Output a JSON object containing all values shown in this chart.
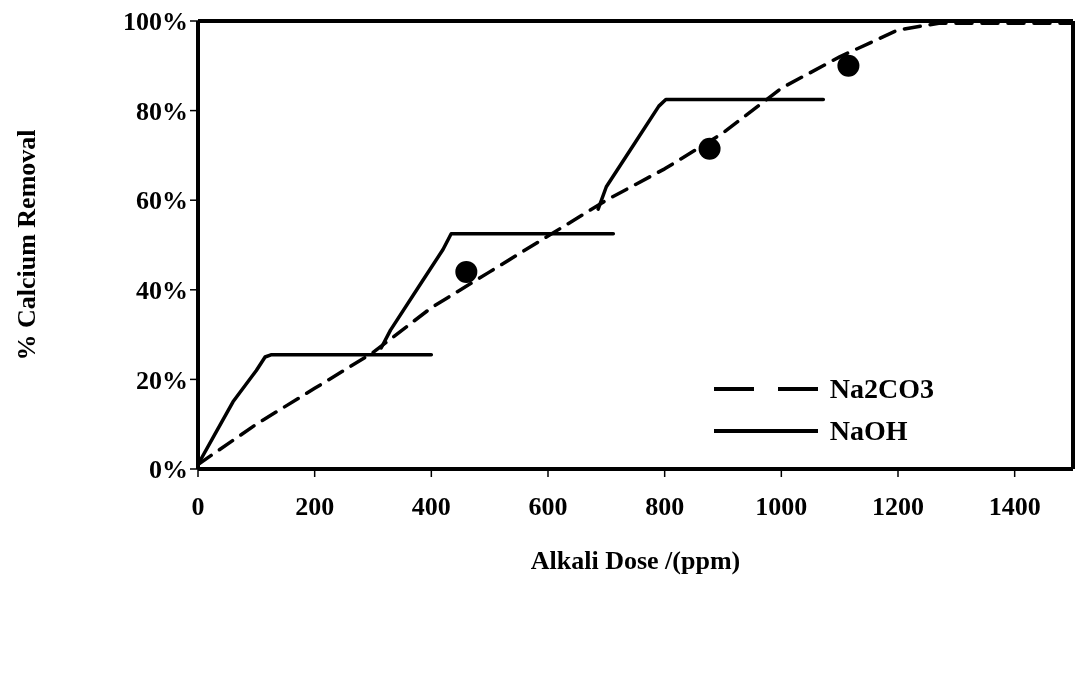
{
  "chart_data": {
    "type": "line",
    "xlabel": "Alkali Dose /(ppm)",
    "ylabel": "% Calcium Removal",
    "xlim": [
      0,
      1500
    ],
    "xticks": [
      0,
      200,
      400,
      600,
      800,
      1000,
      1200,
      1400
    ],
    "ylim": [
      0,
      100
    ],
    "yticks": [
      {
        "value": 0,
        "label": "0%"
      },
      {
        "value": 20,
        "label": "20%"
      },
      {
        "value": 40,
        "label": "40%"
      },
      {
        "value": 60,
        "label": "60%"
      },
      {
        "value": 80,
        "label": "80%"
      },
      {
        "value": 100,
        "label": "100%"
      }
    ],
    "legend": "right",
    "series": [
      {
        "name": "Na2CO3",
        "color": "#000000",
        "line_style": "dashed",
        "x": [
          0,
          100,
          200,
          300,
          400,
          500,
          600,
          700,
          800,
          900,
          1000,
          1100,
          1200,
          1270,
          1500
        ],
        "values": [
          1,
          10,
          18,
          26,
          36,
          44,
          52,
          60,
          67,
          75,
          85,
          92,
          98,
          99.5,
          99.5
        ]
      },
      {
        "name": "NaOH",
        "color": "#000000",
        "line_style": "solid",
        "x": [
          0,
          30,
          60,
          100,
          115,
          125,
          400,
          null,
          314,
          330,
          380,
          420,
          434,
          712,
          null,
          686,
          700,
          750,
          790,
          802,
          1072
        ],
        "values": [
          1,
          8,
          15,
          22,
          25,
          25.5,
          25.5,
          null,
          27,
          31,
          41,
          49,
          52.5,
          52.5,
          null,
          58,
          63,
          73,
          81,
          82.5,
          82.5
        ]
      },
      {
        "type": "scatter",
        "color": "#000000",
        "marker": "circle",
        "x": [
          460,
          877,
          1115
        ],
        "values": [
          44,
          71.5,
          90
        ]
      }
    ]
  }
}
